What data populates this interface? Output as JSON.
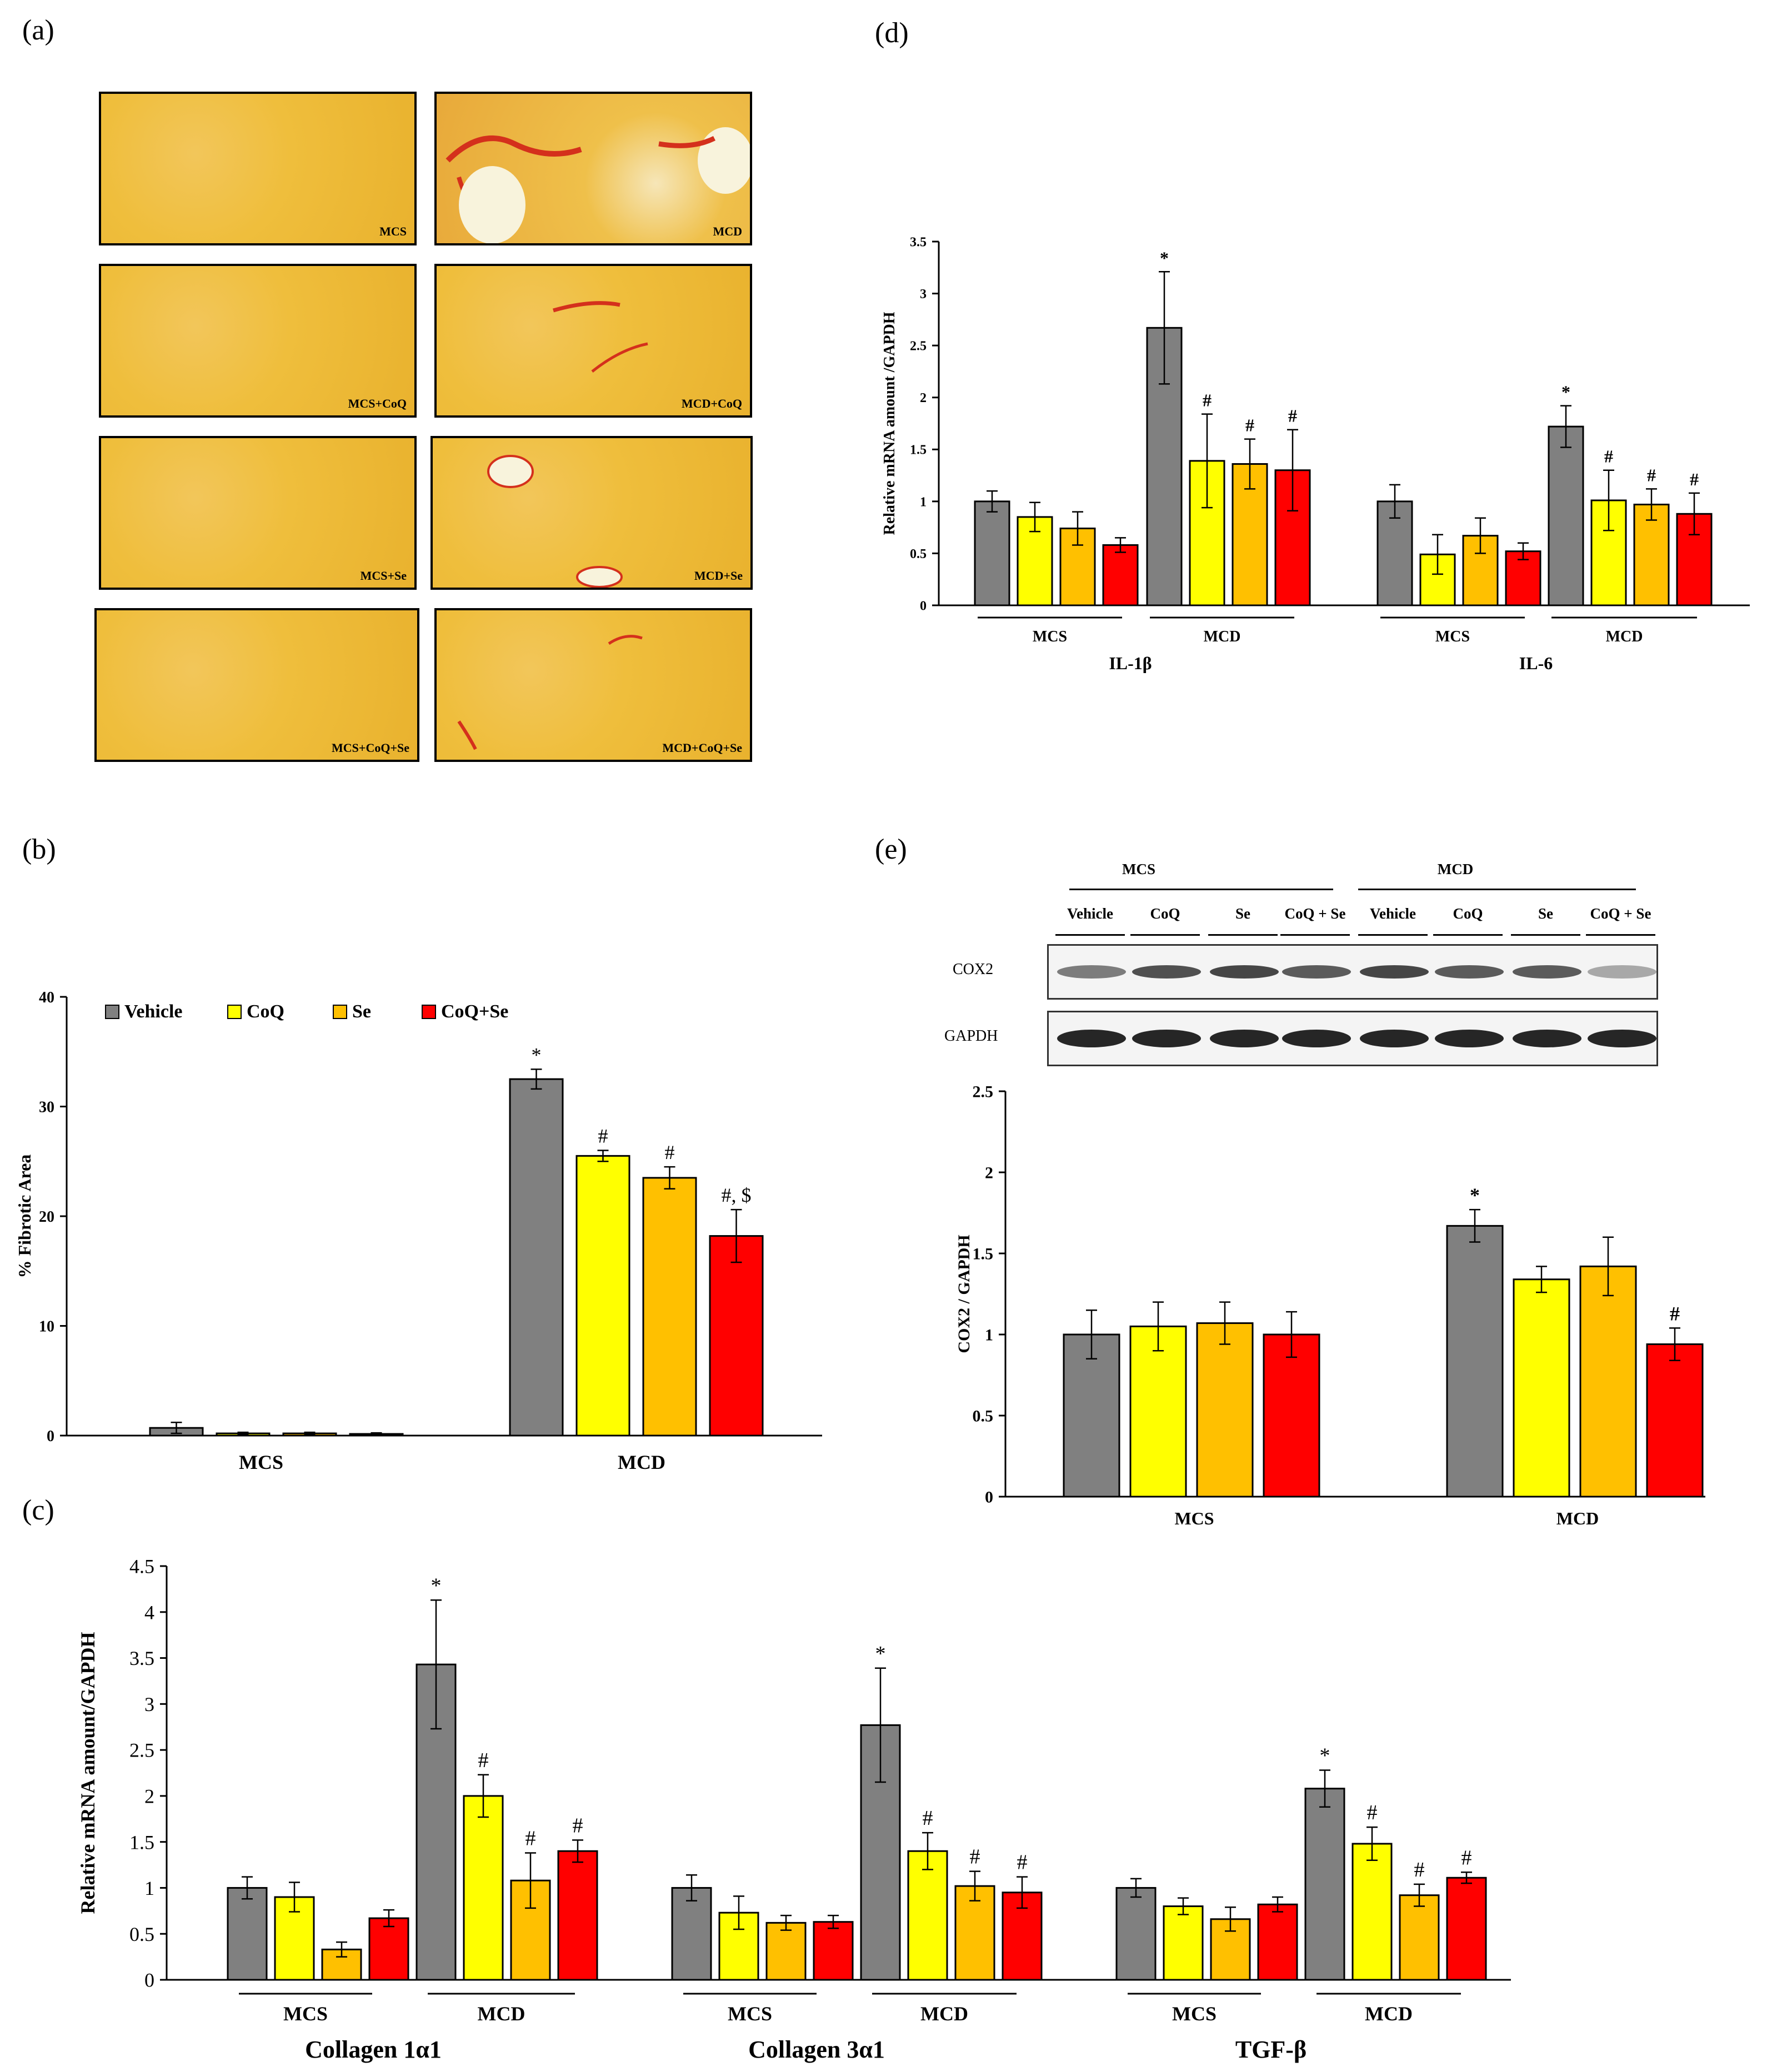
{
  "panel_labels": {
    "a": "(a)",
    "b": "(b)",
    "c": "(c)",
    "d": "(d)",
    "e": "(e)"
  },
  "colors": {
    "vehicle": "#808080",
    "coq": "#FFFF00",
    "se": "#FFC000",
    "coq_se": "#FF0000"
  },
  "micrographs": {
    "labels": [
      "MCS",
      "MCD",
      "MCS+CoQ",
      "MCD+CoQ",
      "MCS+Se",
      "MCD+Se",
      "MCS+CoQ+Se",
      "MCD+CoQ+Se"
    ]
  },
  "western_blot": {
    "group_labels": [
      "MCS",
      "MCD"
    ],
    "lane_labels": [
      "Vehicle",
      "CoQ",
      "Se",
      "CoQ + Se",
      "Vehicle",
      "CoQ",
      "Se",
      "CoQ + Se"
    ],
    "rows": [
      "COX2",
      "GAPDH"
    ],
    "cox2_intensity": [
      0.55,
      0.75,
      0.8,
      0.7,
      0.8,
      0.7,
      0.7,
      0.35
    ],
    "gapdh_intensity": [
      0.95,
      0.95,
      0.95,
      0.95,
      0.95,
      0.95,
      0.95,
      0.95
    ]
  },
  "chart_data": [
    {
      "id": "b",
      "type": "bar",
      "ylabel": "% Fibrotic Area",
      "ylim": [
        0,
        40
      ],
      "yticks": [
        "0",
        "10",
        "20",
        "30",
        "40"
      ],
      "legend": [
        "Vehicle",
        "CoQ",
        "Se",
        "CoQ+Se"
      ],
      "categories": [
        "MCS",
        "MCD"
      ],
      "series": [
        {
          "name": "Vehicle",
          "values": [
            0.7,
            32.5
          ],
          "errors": [
            0.5,
            0.9
          ],
          "marks": [
            "",
            "*"
          ]
        },
        {
          "name": "CoQ",
          "values": [
            0.2,
            25.5
          ],
          "errors": [
            0.1,
            0.5
          ],
          "marks": [
            "",
            "#"
          ]
        },
        {
          "name": "Se",
          "values": [
            0.2,
            23.5
          ],
          "errors": [
            0.1,
            1.0
          ],
          "marks": [
            "",
            "#"
          ]
        },
        {
          "name": "CoQ+Se",
          "values": [
            0.15,
            18.2
          ],
          "errors": [
            0.1,
            2.4
          ],
          "marks": [
            "",
            "#, $"
          ]
        }
      ]
    },
    {
      "id": "c",
      "type": "bar",
      "ylabel": "Relative mRNA amount/GAPDH",
      "ylim": [
        0,
        4.5
      ],
      "yticks": [
        "0",
        "0.5",
        "1",
        "1.5",
        "2",
        "2.5",
        "3",
        "3.5",
        "4",
        "4.5"
      ],
      "genes": [
        "Collagen 1α1",
        "Collagen 3α1",
        "TGF-β"
      ],
      "subgroups": [
        "MCS",
        "MCD"
      ],
      "series": [
        {
          "name": "Vehicle",
          "values": [
            1.0,
            3.43,
            1.0,
            2.77,
            1.0,
            2.08
          ],
          "errors": [
            0.12,
            0.7,
            0.14,
            0.62,
            0.1,
            0.2
          ],
          "marks": [
            "",
            "*",
            "",
            "*",
            "",
            "*"
          ]
        },
        {
          "name": "CoQ",
          "values": [
            0.9,
            2.0,
            0.73,
            1.4,
            0.8,
            1.48
          ],
          "errors": [
            0.16,
            0.23,
            0.18,
            0.2,
            0.09,
            0.18
          ],
          "marks": [
            "",
            "#",
            "",
            "#",
            "",
            "#"
          ]
        },
        {
          "name": "Se",
          "values": [
            0.33,
            1.08,
            0.62,
            1.02,
            0.66,
            0.92
          ],
          "errors": [
            0.08,
            0.3,
            0.08,
            0.16,
            0.13,
            0.12
          ],
          "marks": [
            "",
            "#",
            "",
            "#",
            "",
            "#"
          ]
        },
        {
          "name": "CoQ+Se",
          "values": [
            0.67,
            1.4,
            0.63,
            0.95,
            0.82,
            1.11
          ],
          "errors": [
            0.09,
            0.12,
            0.07,
            0.17,
            0.08,
            0.06
          ],
          "marks": [
            "",
            "#",
            "",
            "#",
            "",
            "#"
          ]
        }
      ]
    },
    {
      "id": "d",
      "type": "bar",
      "ylabel": "Relative mRNA amount /GAPDH",
      "ylim": [
        0,
        3.5
      ],
      "yticks": [
        "0",
        "0.5",
        "1",
        "1.5",
        "2",
        "2.5",
        "3",
        "3.5"
      ],
      "genes": [
        "IL-1β",
        "IL-6"
      ],
      "subgroups": [
        "MCS",
        "MCD"
      ],
      "series": [
        {
          "name": "Vehicle",
          "values": [
            1.0,
            2.67,
            1.0,
            1.72
          ],
          "errors": [
            0.1,
            0.54,
            0.16,
            0.2
          ],
          "marks": [
            "",
            "*",
            "",
            "*"
          ]
        },
        {
          "name": "CoQ",
          "values": [
            0.85,
            1.39,
            0.49,
            1.01
          ],
          "errors": [
            0.14,
            0.45,
            0.19,
            0.29
          ],
          "marks": [
            "",
            "#",
            "",
            "#"
          ]
        },
        {
          "name": "Se",
          "values": [
            0.74,
            1.36,
            0.67,
            0.97
          ],
          "errors": [
            0.16,
            0.24,
            0.17,
            0.15
          ],
          "marks": [
            "",
            "#",
            "",
            "#"
          ]
        },
        {
          "name": "CoQ+Se",
          "values": [
            0.58,
            1.3,
            0.52,
            0.88
          ],
          "errors": [
            0.07,
            0.39,
            0.08,
            0.2
          ],
          "marks": [
            "",
            "#",
            "",
            "#"
          ]
        }
      ]
    },
    {
      "id": "e",
      "type": "bar",
      "ylabel": "COX2 / GAPDH",
      "ylim": [
        0,
        2.5
      ],
      "yticks": [
        "0",
        "0.5",
        "1",
        "1.5",
        "2",
        "2.5"
      ],
      "categories": [
        "MCS",
        "MCD"
      ],
      "series": [
        {
          "name": "Vehicle",
          "values": [
            1.0,
            1.67
          ],
          "errors": [
            0.15,
            0.1
          ],
          "marks": [
            "",
            "*"
          ]
        },
        {
          "name": "CoQ",
          "values": [
            1.05,
            1.34
          ],
          "errors": [
            0.15,
            0.08
          ],
          "marks": [
            "",
            ""
          ]
        },
        {
          "name": "Se",
          "values": [
            1.07,
            1.42
          ],
          "errors": [
            0.13,
            0.18
          ],
          "marks": [
            "",
            ""
          ]
        },
        {
          "name": "CoQ+Se",
          "values": [
            1.0,
            0.94
          ],
          "errors": [
            0.14,
            0.1
          ],
          "marks": [
            "",
            "#"
          ]
        }
      ]
    }
  ]
}
